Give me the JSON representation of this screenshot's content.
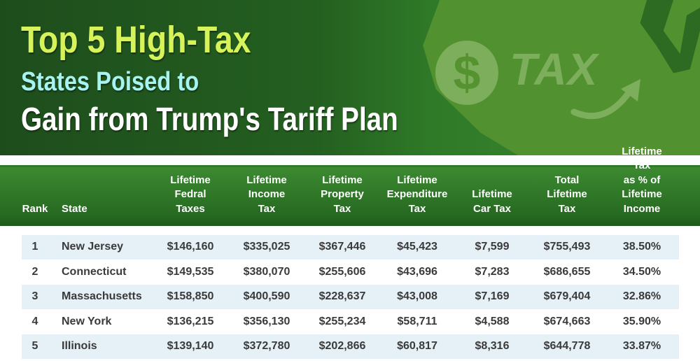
{
  "title": {
    "line1": "Top 5 High-Tax",
    "line2": "States Poised to",
    "line3": "Gain from Trump's Tariff Plan"
  },
  "graphic": {
    "badge_symbol": "$",
    "word": "TAX"
  },
  "colors": {
    "title1": "#d6f45a",
    "title2": "#a6f3f0",
    "header": "#2f7a28",
    "row_shade": "#e6f0f7"
  },
  "table": {
    "headers": [
      [
        "Rank"
      ],
      [
        "State"
      ],
      [
        "Lifetime",
        "Fedral",
        "Taxes"
      ],
      [
        "Lifetime",
        "Income",
        "Tax"
      ],
      [
        "Lifetime",
        "Property",
        "Tax"
      ],
      [
        "Lifetime",
        "Expenditure",
        "Tax"
      ],
      [
        "Lifetime",
        "Car Tax"
      ],
      [
        "Total",
        "Lifetime",
        "Tax"
      ],
      [
        "Lifetime Tax",
        "as % of",
        "Lifetime Income"
      ]
    ],
    "rows": [
      [
        "1",
        "New Jersey",
        "$146,160",
        "$335,025",
        "$367,446",
        "$45,423",
        "$7,599",
        "$755,493",
        "38.50%"
      ],
      [
        "2",
        "Connecticut",
        "$149,535",
        "$380,070",
        "$255,606",
        "$43,696",
        "$7,283",
        "$686,655",
        "34.50%"
      ],
      [
        "3",
        "Massachusetts",
        "$158,850",
        "$400,590",
        "$228,637",
        "$43,008",
        "$7,169",
        "$679,404",
        "32.86%"
      ],
      [
        "4",
        "New York",
        "$136,215",
        "$356,130",
        "$255,234",
        "$58,711",
        "$4,588",
        "$674,663",
        "35.90%"
      ],
      [
        "5",
        "Illinois",
        "$139,140",
        "$372,780",
        "$202,866",
        "$60,817",
        "$8,316",
        "$644,778",
        "33.87%"
      ]
    ]
  }
}
